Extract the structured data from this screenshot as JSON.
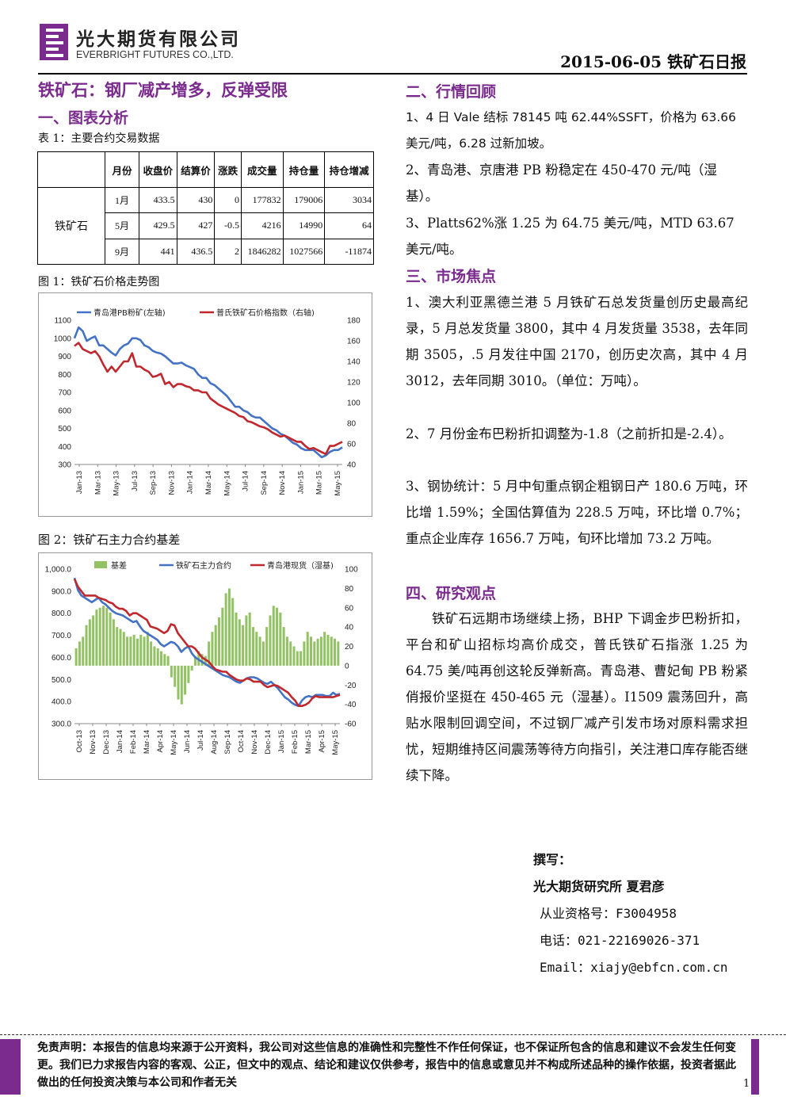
{
  "header": {
    "company_cn": "光大期货有限公司",
    "company_en": "EVERBRIGHT FUTURES CO.,LTD.",
    "date_report": "2015-06-05 铁矿石日报"
  },
  "left": {
    "main_title": "铁矿石：钢厂减产增多，反弹受限",
    "section1": "一、图表分析",
    "table_caption": "表 1：主要合约交易数据",
    "table": {
      "headers": [
        "",
        "月份",
        "收盘价",
        "结算价",
        "涨跌",
        "成交量",
        "持仓量",
        "持仓增减"
      ],
      "row_label": "铁矿石",
      "rows": [
        [
          "1月",
          "433.5",
          "430",
          "0",
          "177832",
          "179006",
          "3034"
        ],
        [
          "5月",
          "429.5",
          "427",
          "-0.5",
          "4216",
          "14990",
          "64"
        ],
        [
          "9月",
          "441",
          "436.5",
          "2",
          "1846282",
          "1027566",
          "-11874"
        ]
      ]
    },
    "fig1_caption": "图 1：铁矿石价格走势图",
    "fig2_caption": "图 2：铁矿石主力合约基差"
  },
  "chart_data": [
    {
      "type": "line",
      "series": [
        {
          "name": "青岛港PB粉矿(左轴)",
          "axis": "left",
          "color": "#4472c4",
          "values": [
            1000,
            1060,
            1040,
            985,
            1000,
            1010,
            960,
            960,
            940,
            920,
            905,
            940,
            960,
            970,
            1000,
            1000,
            990,
            960,
            950,
            930,
            920,
            915,
            900,
            880,
            860,
            860,
            865,
            850,
            840,
            830,
            800,
            780,
            780,
            750,
            740,
            720,
            700,
            680,
            650,
            620,
            620,
            600,
            590,
            570,
            560,
            560,
            540,
            520,
            500,
            490,
            470,
            460,
            440,
            420,
            410,
            390,
            380,
            380,
            380,
            360,
            340,
            350,
            370,
            380,
            380,
            395
          ]
        },
        {
          "name": "普氏铁矿石价格指数（右轴)",
          "axis": "right",
          "color": "#c0282e",
          "values": [
            155,
            158,
            152,
            150,
            148,
            150,
            145,
            137,
            130,
            135,
            130,
            135,
            140,
            140,
            148,
            135,
            135,
            132,
            130,
            125,
            126,
            128,
            118,
            120,
            115,
            118,
            118,
            116,
            115,
            112,
            112,
            110,
            110,
            104,
            101,
            98,
            96,
            94,
            92,
            90,
            87,
            86,
            82,
            81,
            79,
            77,
            76,
            74,
            71,
            69,
            67,
            68,
            66,
            64,
            62,
            62,
            58,
            55,
            56,
            54,
            52,
            50,
            58,
            58,
            60,
            62
          ]
        }
      ],
      "x_tick_labels": [
        "Jan-13",
        "Mar-13",
        "May-13",
        "Jul-13",
        "Sep-13",
        "Nov-13",
        "Jan-14",
        "Mar-14",
        "May-14",
        "Jul-14",
        "Sep-14",
        "Nov-14",
        "Jan-15",
        "Mar-15",
        "May-15"
      ],
      "y_left_ticks": [
        300,
        400,
        500,
        600,
        700,
        800,
        900,
        1000,
        1100
      ],
      "y_right_ticks": [
        40,
        60,
        80,
        100,
        120,
        140,
        160,
        180
      ],
      "ylim_left": [
        300,
        1100
      ],
      "ylim_right": [
        40,
        180
      ],
      "legend": "top",
      "grid": false
    },
    {
      "type": "bar+line",
      "series": [
        {
          "name": "基差",
          "kind": "bar",
          "axis": "right",
          "color": "#92c264",
          "values": [
            18,
            25,
            30,
            42,
            48,
            52,
            58,
            60,
            62,
            60,
            55,
            48,
            40,
            38,
            35,
            30,
            30,
            32,
            28,
            32,
            30,
            35,
            25,
            20,
            18,
            15,
            12,
            10,
            -12,
            -22,
            -35,
            -40,
            -30,
            -18,
            -5,
            10,
            15,
            12,
            10,
            25,
            35,
            42,
            50,
            60,
            75,
            80,
            70,
            55,
            48,
            42,
            52,
            55,
            40,
            35,
            30,
            25,
            40,
            52,
            62,
            60,
            55,
            40,
            30,
            25,
            20,
            15,
            15,
            25,
            35,
            30,
            25,
            28,
            30,
            35,
            32,
            30,
            28,
            25
          ]
        },
        {
          "name": "铁矿石主力合约",
          "kind": "line",
          "axis": "left",
          "color": "#4472c4",
          "values": [
            960,
            905,
            880,
            870,
            860,
            850,
            860,
            870,
            850,
            840,
            825,
            810,
            800,
            795,
            790,
            780,
            770,
            760,
            765,
            740,
            720,
            710,
            700,
            690,
            680,
            660,
            650,
            660,
            670,
            665,
            650,
            625,
            640,
            650,
            620,
            600,
            590,
            580,
            570,
            560,
            550,
            540,
            530,
            520,
            515,
            510,
            500,
            490,
            485,
            495,
            505,
            510,
            510,
            505,
            495,
            485,
            480,
            490,
            475,
            460,
            440,
            420,
            410,
            395,
            385,
            380,
            405,
            420,
            425,
            420,
            430,
            430,
            430,
            425,
            425,
            440,
            430,
            435
          ]
        },
        {
          "name": "青岛港现货（湿基)",
          "kind": "line",
          "axis": "left",
          "color": "#c0282e",
          "values": [
            955,
            920,
            900,
            880,
            880,
            880,
            880,
            870,
            865,
            860,
            850,
            845,
            830,
            820,
            820,
            810,
            790,
            800,
            800,
            790,
            780,
            770,
            740,
            735,
            730,
            720,
            710,
            720,
            750,
            745,
            710,
            690,
            670,
            650,
            650,
            640,
            620,
            600,
            590,
            580,
            560,
            545,
            540,
            535,
            535,
            520,
            510,
            500,
            495,
            495,
            505,
            500,
            490,
            490,
            490,
            475,
            465,
            470,
            475,
            470,
            460,
            450,
            440,
            420,
            405,
            380,
            380,
            385,
            395,
            415,
            425,
            420,
            420,
            420,
            420,
            420,
            425,
            430
          ]
        }
      ],
      "x_tick_labels": [
        "Oct-13",
        "Nov-13",
        "Dec-13",
        "Jan-14",
        "Feb-14",
        "Mar-14",
        "Apr-14",
        "May-14",
        "Jun-14",
        "Jul-14",
        "Aug-14",
        "Sep-14",
        "Oct-14",
        "Nov-14",
        "Dec-14",
        "Jan-15",
        "Feb-15",
        "Mar-15",
        "Apr-15",
        "May-15"
      ],
      "y_left_ticks": [
        "300.0",
        "400.0",
        "500.0",
        "600.0",
        "700.0",
        "800.0",
        "900.0",
        "1,000.0"
      ],
      "y_right_ticks": [
        -60,
        -40,
        -20,
        0,
        20,
        40,
        60,
        80,
        100
      ],
      "ylim_left": [
        300,
        1000
      ],
      "ylim_right": [
        -60,
        100
      ],
      "legend": "top",
      "grid": false
    }
  ],
  "right": {
    "section2": "二、行情回顾",
    "review": [
      "1、4 日 Vale 结标 78145 吨 62.44%SSFT，价格为 63.66 美元/吨，6.28 过新加坡。",
      "2、青岛港、京唐港 PB 粉稳定在 450-470 元/吨（湿基）。",
      "3、Platts62%涨 1.25 为 64.75 美元/吨，MTD 63.67 美元/吨。"
    ],
    "section3": "三、市场焦点",
    "focus": [
      "1、澳大利亚黑德兰港 5 月铁矿石总发货量创历史最高纪录，5 月总发货量 3800，其中 4 月发货量 3538，去年同期 3505，.5 月发往中国 2170，创历史次高，其中 4 月 3012，去年同期 3010。（单位：万吨）。",
      "2、7 月份金布巴粉折扣调整为-1.8（之前折扣是-2.4）。",
      "3、钢协统计：5 月中旬重点钢企粗钢日产 180.6 万吨，环比增 1.59%；全国估算值为 228.5 万吨，环比增 0.7%；重点企业库存 1656.7 万吨，旬环比增加 73.2 万吨。"
    ],
    "section4": "四、研究观点",
    "view": "铁矿石远期市场继续上扬，BHP 下调金步巴粉折扣，平台和矿山招标均高价成交，普氏铁矿石指涨 1.25 为 64.75 美/吨再创这轮反弹新高。青岛港、曹妃甸 PB 粉紧俏报价坚挺在 450-465 元（湿基）。I1509 震荡回升，高贴水限制回调空间，不过钢厂减产引发市场对原料需求担忧，短期维持区间震荡等待方向指引，关注港口库存能否继续下降。"
  },
  "author": {
    "label": "撰写：",
    "name": "光大期货研究所 夏君彦",
    "license": "从业资格号：F3004958",
    "phone": "电话：021-22169026-371",
    "email": "Email：xiajy@ebfcn.com.cn"
  },
  "footer": {
    "disclaimer": "免责声明：本报告的信息均来源于公开资料，我公司对这些信息的准确性和完整性不作任何保证，也不保证所包含的信息和建议不会发生任何变更。我们已力求报告内容的客观、公正，但文中的观点、结论和建议仅供参考，报告中的信息或意见并不构成所述品种的操作依据，投资者据此做出的任何投资决策与本公司和作者无关",
    "page_number": "1"
  },
  "colors": {
    "accent": "#7b2a8e",
    "blue": "#4472c4",
    "red": "#c0282e",
    "green": "#92c264"
  }
}
